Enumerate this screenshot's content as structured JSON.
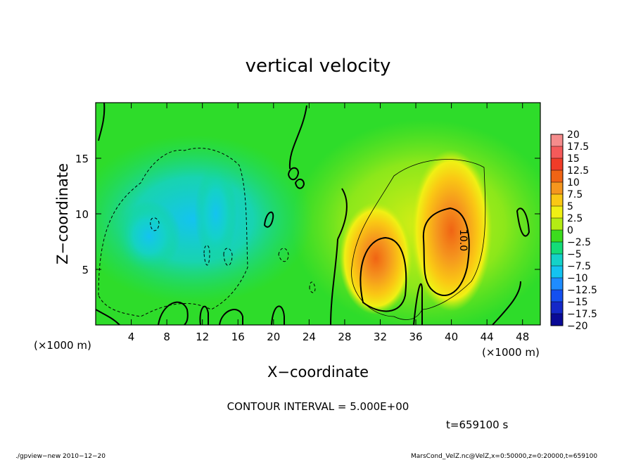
{
  "chart_data": {
    "type": "heatmap",
    "title": "vertical velocity",
    "xlabel": "X−coordinate",
    "ylabel": "Z−coordinate",
    "x_unit_left": "(×1000 m)",
    "x_unit_right": "(×1000 m)",
    "xlim": [
      0,
      50
    ],
    "ylim": [
      0,
      20
    ],
    "x_ticks": [
      4,
      8,
      12,
      16,
      20,
      24,
      28,
      32,
      36,
      40,
      44,
      48
    ],
    "y_ticks": [
      5,
      10,
      15
    ],
    "contour_interval_text": "CONTOUR INTERVAL = 5.000E+00",
    "time_text": "t=659100 s",
    "contour_label": "10.0",
    "colorbar": {
      "labels": [
        "20",
        "17.5",
        "15",
        "12.5",
        "10",
        "7.5",
        "5",
        "2.5",
        "0",
        "−2.5",
        "−5",
        "−7.5",
        "−10",
        "−12.5",
        "−15",
        "−17.5",
        "−20"
      ],
      "values": [
        20,
        17.5,
        15,
        12.5,
        10,
        7.5,
        5,
        2.5,
        0,
        -2.5,
        -5,
        -7.5,
        -10,
        -12.5,
        -15,
        -17.5,
        -20
      ],
      "colors": [
        "#f58c8c",
        "#f55a5a",
        "#f03c28",
        "#f06414",
        "#f5961e",
        "#fac814",
        "#f0f014",
        "#b4ec14",
        "#3cdc1e",
        "#14dc78",
        "#14d2c8",
        "#14c3f0",
        "#1e8cff",
        "#1450f0",
        "#1428c8",
        "#0a0a96",
        "#6414c8"
      ]
    },
    "features": [
      {
        "x": 31.5,
        "z": 6.0,
        "value": 12.5
      },
      {
        "x": 40.0,
        "z": 8.5,
        "value": 12.5
      },
      {
        "x": 6.0,
        "z": 8.0,
        "value": -7.5
      },
      {
        "x": 13.5,
        "z": 10.0,
        "value": -7.5
      },
      {
        "x": 9.5,
        "z": 10.5,
        "value": -5
      }
    ],
    "footer_left": "./gpview−new   2010−12−20",
    "footer_right": "MarsCond_VelZ.nc@VelZ,x=0:50000,z=0:20000,t=659100"
  }
}
